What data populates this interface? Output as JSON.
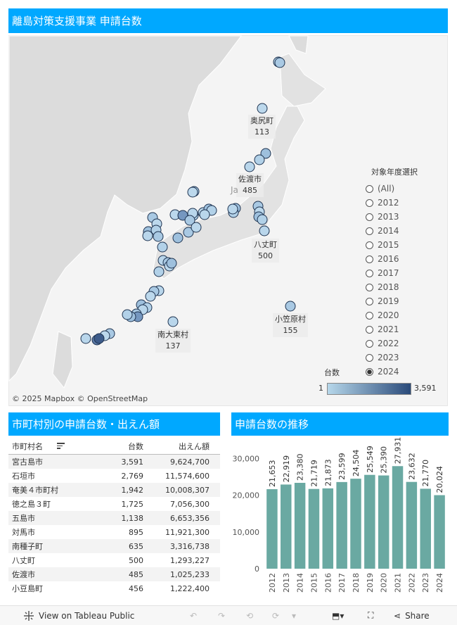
{
  "map_panel": {
    "title": "離島対策支援事業 申請台数",
    "credits": "© 2025 Mapbox  © OpenStreetMap",
    "partial_label": "Ja",
    "labels": [
      {
        "name": "奥尻町",
        "value": "113"
      },
      {
        "name": "佐渡市",
        "value": "485"
      },
      {
        "name": "八丈町",
        "value": "500"
      },
      {
        "name": "小笠原村",
        "value": "155"
      },
      {
        "name": "南大東村",
        "value": "137"
      }
    ],
    "filter": {
      "title": "対象年度選択",
      "options": [
        "(All)",
        "2012",
        "2013",
        "2014",
        "2015",
        "2016",
        "2017",
        "2018",
        "2019",
        "2020",
        "2021",
        "2022",
        "2023",
        "2024"
      ],
      "selected": "2024"
    },
    "legend": {
      "title": "台数",
      "min": "1",
      "max": "3,591",
      "color_min": "#b6d7ea",
      "color_max": "#2a4a7a"
    }
  },
  "table_panel": {
    "title": "市町村別の申請台数・出えん額",
    "headers": [
      "市町村名",
      "台数",
      "出えん額"
    ],
    "rows": [
      [
        "宮古島市",
        "3,591",
        "9,624,700"
      ],
      [
        "石垣市",
        "2,769",
        "11,574,600"
      ],
      [
        "奄美４市町村",
        "1,942",
        "10,008,307"
      ],
      [
        "徳之島３町",
        "1,725",
        "7,056,300"
      ],
      [
        "五島市",
        "1,138",
        "6,653,356"
      ],
      [
        "対馬市",
        "895",
        "11,921,300"
      ],
      [
        "南種子町",
        "635",
        "3,316,738"
      ],
      [
        "八丈町",
        "500",
        "1,293,227"
      ],
      [
        "佐渡市",
        "485",
        "1,025,233"
      ],
      [
        "小豆島町",
        "456",
        "1,222,400"
      ]
    ]
  },
  "trend_panel": {
    "title": "申請台数の推移"
  },
  "chart_data": {
    "type": "bar",
    "title": "申請台数の推移",
    "categories": [
      "2012",
      "2013",
      "2014",
      "2015",
      "2016",
      "2017",
      "2018",
      "2019",
      "2020",
      "2021",
      "2022",
      "2023",
      "2024"
    ],
    "values": [
      21653,
      22919,
      23380,
      21719,
      21873,
      23599,
      24504,
      25549,
      25390,
      27931,
      23632,
      21770,
      20024
    ],
    "value_labels": [
      "21,653",
      "22,919",
      "23,380",
      "21,719",
      "21,873",
      "23,599",
      "24,504",
      "25,549",
      "25,390",
      "27,931",
      "23,632",
      "21,770",
      "20,024"
    ],
    "yticks": [
      0,
      10000,
      20000,
      30000
    ],
    "ytick_labels": [
      "0",
      "10,000",
      "20,000",
      "30,000"
    ],
    "ylim": [
      0,
      34500
    ],
    "bar_color": "#6aa9a2",
    "xlabel": "",
    "ylabel": ""
  },
  "toolbar": {
    "view_label": "View on Tableau Public",
    "share_label": "Share"
  }
}
